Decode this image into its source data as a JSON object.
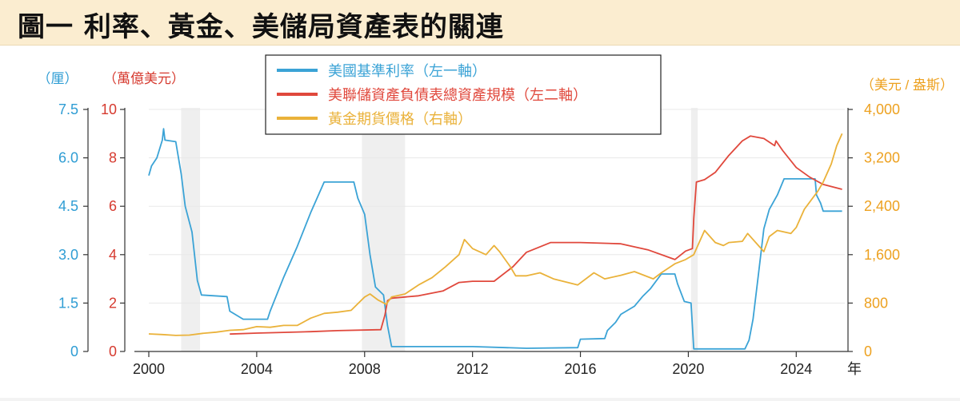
{
  "title": "圖一 利率、黃金、美儲局資產表的關連",
  "chart_data": {
    "type": "line",
    "axes": {
      "left1": {
        "unit_label": "（厘）",
        "ticks": [
          "0",
          "1.5",
          "3.0",
          "4.5",
          "6.0",
          "7.5"
        ],
        "range": [
          0,
          7.5
        ],
        "color": "#2f9dd4"
      },
      "left2": {
        "unit_label": "（萬億美元）",
        "ticks": [
          "0",
          "2",
          "4",
          "6",
          "8",
          "10"
        ],
        "range": [
          0,
          10
        ],
        "color": "#d63a2f"
      },
      "right": {
        "unit_label": "（美元 / 盎斯）",
        "ticks": [
          "0",
          "800",
          "1,600",
          "2,400",
          "3,200",
          "4,000"
        ],
        "range": [
          0,
          4000
        ],
        "color": "#eda120"
      },
      "x": {
        "ticks": [
          "2000",
          "2004",
          "2008",
          "2012",
          "2016",
          "2020",
          "2024"
        ],
        "unit_label": "年",
        "range": [
          2000,
          2025.8
        ]
      }
    },
    "legend_position": "top-center",
    "recession_bands": [
      [
        2001.2,
        2001.9
      ],
      [
        2007.9,
        2009.5
      ],
      [
        2020.1,
        2020.35
      ]
    ],
    "series": [
      {
        "name": "美國基準利率（左一軸）",
        "axis": "left1",
        "color": "#3ba3d6",
        "points": [
          [
            2000.0,
            5.45
          ],
          [
            2000.1,
            5.75
          ],
          [
            2000.3,
            6.0
          ],
          [
            2000.5,
            6.55
          ],
          [
            2000.55,
            6.9
          ],
          [
            2000.6,
            6.55
          ],
          [
            2001.0,
            6.5
          ],
          [
            2001.1,
            6.0
          ],
          [
            2001.2,
            5.5
          ],
          [
            2001.35,
            4.5
          ],
          [
            2001.6,
            3.7
          ],
          [
            2001.8,
            2.2
          ],
          [
            2001.95,
            1.75
          ],
          [
            2002.9,
            1.7
          ],
          [
            2003.0,
            1.25
          ],
          [
            2003.5,
            1.0
          ],
          [
            2004.4,
            1.0
          ],
          [
            2004.5,
            1.25
          ],
          [
            2005.0,
            2.3
          ],
          [
            2005.5,
            3.25
          ],
          [
            2006.0,
            4.3
          ],
          [
            2006.5,
            5.25
          ],
          [
            2007.6,
            5.25
          ],
          [
            2007.75,
            4.75
          ],
          [
            2008.0,
            4.25
          ],
          [
            2008.2,
            3.0
          ],
          [
            2008.4,
            2.0
          ],
          [
            2008.7,
            1.75
          ],
          [
            2008.85,
            0.8
          ],
          [
            2009.0,
            0.15
          ],
          [
            2010.0,
            0.15
          ],
          [
            2012.0,
            0.15
          ],
          [
            2014.0,
            0.1
          ],
          [
            2015.9,
            0.12
          ],
          [
            2016.0,
            0.38
          ],
          [
            2016.9,
            0.4
          ],
          [
            2017.0,
            0.65
          ],
          [
            2017.3,
            0.9
          ],
          [
            2017.5,
            1.15
          ],
          [
            2018.0,
            1.4
          ],
          [
            2018.3,
            1.7
          ],
          [
            2018.6,
            1.95
          ],
          [
            2019.0,
            2.4
          ],
          [
            2019.5,
            2.4
          ],
          [
            2019.6,
            2.1
          ],
          [
            2019.85,
            1.55
          ],
          [
            2020.1,
            1.5
          ],
          [
            2020.2,
            0.08
          ],
          [
            2022.1,
            0.08
          ],
          [
            2022.25,
            0.35
          ],
          [
            2022.4,
            1.0
          ],
          [
            2022.6,
            2.4
          ],
          [
            2022.8,
            3.8
          ],
          [
            2023.0,
            4.4
          ],
          [
            2023.3,
            4.85
          ],
          [
            2023.55,
            5.35
          ],
          [
            2024.7,
            5.35
          ],
          [
            2024.75,
            4.85
          ],
          [
            2024.9,
            4.6
          ],
          [
            2025.0,
            4.35
          ],
          [
            2025.7,
            4.35
          ]
        ]
      },
      {
        "name": "美聯儲資產負債表總資產規模（左二軸）",
        "axis": "left2",
        "color": "#e0483c",
        "points": [
          [
            2003.0,
            0.72
          ],
          [
            2004.0,
            0.76
          ],
          [
            2005.0,
            0.79
          ],
          [
            2006.0,
            0.82
          ],
          [
            2007.0,
            0.86
          ],
          [
            2008.6,
            0.9
          ],
          [
            2008.75,
            1.5
          ],
          [
            2008.85,
            2.1
          ],
          [
            2009.0,
            2.2
          ],
          [
            2010.0,
            2.3
          ],
          [
            2010.9,
            2.5
          ],
          [
            2011.5,
            2.85
          ],
          [
            2012.0,
            2.9
          ],
          [
            2012.8,
            2.9
          ],
          [
            2013.5,
            3.5
          ],
          [
            2014.0,
            4.1
          ],
          [
            2014.9,
            4.5
          ],
          [
            2016.0,
            4.5
          ],
          [
            2017.5,
            4.45
          ],
          [
            2018.5,
            4.2
          ],
          [
            2019.5,
            3.8
          ],
          [
            2019.9,
            4.15
          ],
          [
            2020.15,
            4.25
          ],
          [
            2020.2,
            5.5
          ],
          [
            2020.3,
            7.0
          ],
          [
            2020.6,
            7.1
          ],
          [
            2021.0,
            7.4
          ],
          [
            2021.5,
            8.1
          ],
          [
            2022.0,
            8.7
          ],
          [
            2022.3,
            8.9
          ],
          [
            2022.8,
            8.8
          ],
          [
            2023.2,
            8.5
          ],
          [
            2023.25,
            8.7
          ],
          [
            2023.5,
            8.3
          ],
          [
            2024.0,
            7.6
          ],
          [
            2024.5,
            7.2
          ],
          [
            2025.0,
            6.9
          ],
          [
            2025.7,
            6.7
          ]
        ]
      },
      {
        "name": "黃金期貨價格（右軸）",
        "axis": "right",
        "color": "#eab23a",
        "points": [
          [
            2000.0,
            290
          ],
          [
            2000.5,
            280
          ],
          [
            2001.0,
            265
          ],
          [
            2001.5,
            270
          ],
          [
            2002.0,
            300
          ],
          [
            2002.5,
            320
          ],
          [
            2003.0,
            350
          ],
          [
            2003.5,
            360
          ],
          [
            2004.0,
            410
          ],
          [
            2004.5,
            400
          ],
          [
            2005.0,
            430
          ],
          [
            2005.5,
            430
          ],
          [
            2006.0,
            550
          ],
          [
            2006.5,
            630
          ],
          [
            2007.0,
            650
          ],
          [
            2007.5,
            680
          ],
          [
            2008.0,
            900
          ],
          [
            2008.2,
            950
          ],
          [
            2008.5,
            850
          ],
          [
            2008.8,
            780
          ],
          [
            2009.0,
            900
          ],
          [
            2009.5,
            950
          ],
          [
            2010.0,
            1100
          ],
          [
            2010.5,
            1220
          ],
          [
            2011.0,
            1400
          ],
          [
            2011.5,
            1600
          ],
          [
            2011.7,
            1850
          ],
          [
            2012.0,
            1700
          ],
          [
            2012.5,
            1600
          ],
          [
            2012.8,
            1750
          ],
          [
            2013.0,
            1650
          ],
          [
            2013.4,
            1400
          ],
          [
            2013.6,
            1250
          ],
          [
            2014.0,
            1250
          ],
          [
            2014.5,
            1300
          ],
          [
            2015.0,
            1200
          ],
          [
            2015.9,
            1100
          ],
          [
            2016.5,
            1300
          ],
          [
            2016.9,
            1200
          ],
          [
            2017.5,
            1260
          ],
          [
            2018.0,
            1320
          ],
          [
            2018.7,
            1200
          ],
          [
            2019.0,
            1300
          ],
          [
            2019.5,
            1450
          ],
          [
            2019.9,
            1520
          ],
          [
            2020.2,
            1600
          ],
          [
            2020.6,
            2000
          ],
          [
            2021.0,
            1800
          ],
          [
            2021.3,
            1750
          ],
          [
            2021.5,
            1800
          ],
          [
            2022.0,
            1820
          ],
          [
            2022.2,
            1950
          ],
          [
            2022.8,
            1650
          ],
          [
            2023.0,
            1900
          ],
          [
            2023.3,
            2000
          ],
          [
            2023.8,
            1950
          ],
          [
            2024.0,
            2050
          ],
          [
            2024.3,
            2350
          ],
          [
            2024.8,
            2650
          ],
          [
            2025.0,
            2800
          ],
          [
            2025.3,
            3100
          ],
          [
            2025.5,
            3400
          ],
          [
            2025.7,
            3600
          ]
        ]
      }
    ]
  }
}
